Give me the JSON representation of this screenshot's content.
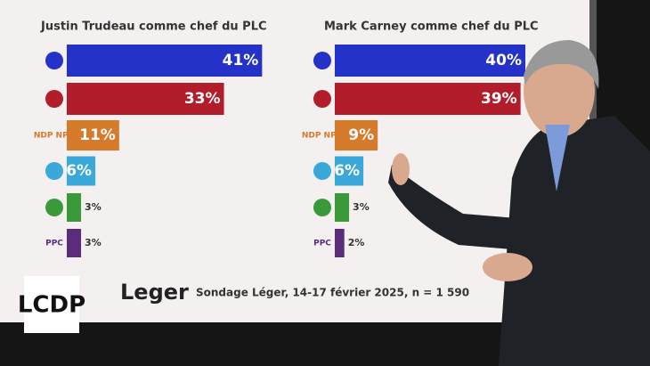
{
  "chart_data": [
    {
      "type": "bar",
      "title": "Justin Trudeau comme chef du PLC",
      "categories": [
        null,
        null,
        "NDP NPD",
        null,
        null,
        "PPC"
      ],
      "values": [
        41,
        33,
        11,
        6,
        3,
        3
      ],
      "value_labels": [
        "41%",
        "33%",
        "11%",
        "6%",
        "3%",
        "3%"
      ],
      "colors": [
        "#2432c8",
        "#b11d2b",
        "#d67a2c",
        "#3aa9d9",
        "#3a9a3a",
        "#5b2b7c"
      ]
    },
    {
      "type": "bar",
      "title": "Mark Carney comme chef du PLC",
      "categories": [
        null,
        null,
        "NDP NPD",
        null,
        null,
        "PPC"
      ],
      "values": [
        40,
        39,
        9,
        6,
        3,
        2
      ],
      "value_labels": [
        "40%",
        "39%",
        "9%",
        "6%",
        "3%",
        "2%"
      ],
      "colors": [
        "#2432c8",
        "#b11d2b",
        "#d67a2c",
        "#3aa9d9",
        "#3a9a3a",
        "#5b2b7c"
      ]
    }
  ],
  "footer": {
    "brand": "Leger",
    "source": "Sondage Léger, 14-17 février 2025, n = 1 590",
    "show": "LCDP"
  }
}
